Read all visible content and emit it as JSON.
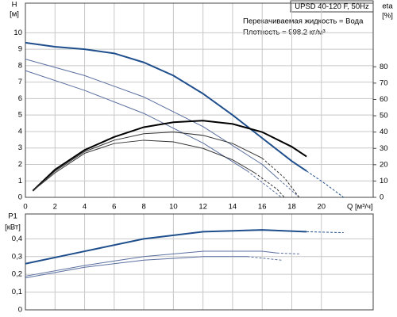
{
  "chart_data": [
    {
      "type": "line",
      "title": "UPSD 40-120 F, 50Hz",
      "annotations": [
        "Перекачиваемая жидкость = Вода",
        "Плотность = 998.2 кг/м³"
      ],
      "xlabel": "Q [м³/ч]",
      "ylabel": "H",
      "ylabel_unit": "[м]",
      "y2label": "eta",
      "y2label_unit": "[%]",
      "xlim": [
        0,
        23.5
      ],
      "xticks": [
        0,
        2,
        4,
        6,
        8,
        10,
        12,
        14,
        16,
        18,
        20
      ],
      "ylim": [
        0,
        11.8
      ],
      "yticks": [
        0,
        1,
        2,
        3,
        4,
        5,
        6,
        7,
        8,
        9,
        10
      ],
      "y2lim": [
        0,
        119
      ],
      "y2ticks": [
        0,
        10,
        20,
        30,
        40,
        50,
        60,
        70,
        80
      ],
      "grid": true,
      "series": [
        {
          "color": "#1f4e8c",
          "width": 2,
          "dash": false,
          "x": [
            0,
            2,
            4,
            6,
            8,
            10,
            12,
            14,
            16,
            18,
            19
          ],
          "values": [
            9.4,
            9.15,
            9.0,
            8.75,
            8.2,
            7.4,
            6.3,
            5.0,
            3.6,
            2.2,
            1.6
          ]
        },
        {
          "color": "#1f4e8c",
          "width": 1,
          "dash": true,
          "x": [
            19,
            20.3,
            21.5
          ],
          "values": [
            1.6,
            0.8,
            0
          ]
        },
        {
          "color": "#5a6fa0",
          "width": 1,
          "dash": false,
          "x": [
            0,
            4,
            8,
            12,
            16,
            17
          ],
          "values": [
            8.4,
            7.4,
            6.1,
            4.3,
            2.0,
            1.2
          ]
        },
        {
          "color": "#5a6fa0",
          "width": 1,
          "dash": true,
          "x": [
            17,
            18.5
          ],
          "values": [
            1.2,
            0
          ]
        },
        {
          "color": "#5a6fa0",
          "width": 1,
          "dash": false,
          "x": [
            0,
            4,
            8,
            12,
            15
          ],
          "values": [
            7.7,
            6.5,
            5.1,
            3.3,
            1.6
          ]
        },
        {
          "color": "#5a6fa0",
          "width": 1,
          "dash": true,
          "x": [
            15,
            17.3
          ],
          "values": [
            1.6,
            0
          ]
        },
        {
          "color": "#000000",
          "width": 2,
          "dash": false,
          "axis": "y2",
          "x": [
            0.5,
            2,
            4,
            6,
            8,
            10,
            12,
            14,
            16,
            18,
            19
          ],
          "values": [
            4,
            17,
            29,
            37,
            43,
            46,
            47,
            45,
            40,
            31,
            25
          ]
        },
        {
          "color": "#333333",
          "width": 1,
          "dash": false,
          "axis": "y2",
          "x": [
            0.5,
            2,
            4,
            6,
            8,
            10,
            12,
            14,
            16
          ],
          "values": [
            4,
            16,
            28,
            35,
            39,
            40,
            38,
            33,
            24
          ]
        },
        {
          "color": "#333333",
          "width": 1,
          "dash": true,
          "axis": "y2",
          "x": [
            16,
            17.5,
            18.5
          ],
          "values": [
            24,
            12,
            0
          ]
        },
        {
          "color": "#333333",
          "width": 1,
          "dash": false,
          "axis": "y2",
          "x": [
            0.5,
            2,
            4,
            6,
            8,
            10,
            12,
            14,
            15.5
          ],
          "values": [
            4,
            15,
            27,
            33,
            35,
            34,
            30,
            23,
            15
          ]
        },
        {
          "color": "#333333",
          "width": 1,
          "dash": true,
          "axis": "y2",
          "x": [
            15.5,
            17,
            17.5
          ],
          "values": [
            15,
            5,
            0
          ]
        }
      ]
    },
    {
      "type": "line",
      "ylabel": "P1",
      "ylabel_unit": "[кВт]",
      "xlim": [
        0,
        23.5
      ],
      "xticks": [
        0,
        2,
        4,
        6,
        8,
        10,
        12,
        14,
        16,
        18,
        20
      ],
      "ylim": [
        0,
        0.54
      ],
      "yticks": [
        0,
        {
          "value": 0.1,
          "label": "0,1"
        },
        {
          "value": 0.2,
          "label": "0,2"
        },
        {
          "value": 0.3,
          "label": "0,3"
        },
        {
          "value": 0.4,
          "label": "0,4"
        }
      ],
      "grid": true,
      "series": [
        {
          "color": "#1f4e8c",
          "width": 2,
          "dash": false,
          "x": [
            0,
            4,
            8,
            12,
            16,
            19
          ],
          "values": [
            0.26,
            0.33,
            0.4,
            0.44,
            0.45,
            0.44
          ]
        },
        {
          "color": "#1f4e8c",
          "width": 1,
          "dash": true,
          "x": [
            19,
            21.5
          ],
          "values": [
            0.44,
            0.435
          ]
        },
        {
          "color": "#5a6fa0",
          "width": 1,
          "dash": false,
          "x": [
            0,
            4,
            8,
            12,
            16,
            17
          ],
          "values": [
            0.19,
            0.25,
            0.3,
            0.33,
            0.33,
            0.32
          ]
        },
        {
          "color": "#5a6fa0",
          "width": 1,
          "dash": true,
          "x": [
            17,
            18.5
          ],
          "values": [
            0.32,
            0.315
          ]
        },
        {
          "color": "#5a6fa0",
          "width": 1,
          "dash": false,
          "x": [
            0,
            4,
            8,
            12,
            15
          ],
          "values": [
            0.18,
            0.24,
            0.28,
            0.3,
            0.3
          ]
        },
        {
          "color": "#5a6fa0",
          "width": 1,
          "dash": true,
          "x": [
            15,
            17.3
          ],
          "values": [
            0.3,
            0.28
          ]
        }
      ]
    }
  ]
}
